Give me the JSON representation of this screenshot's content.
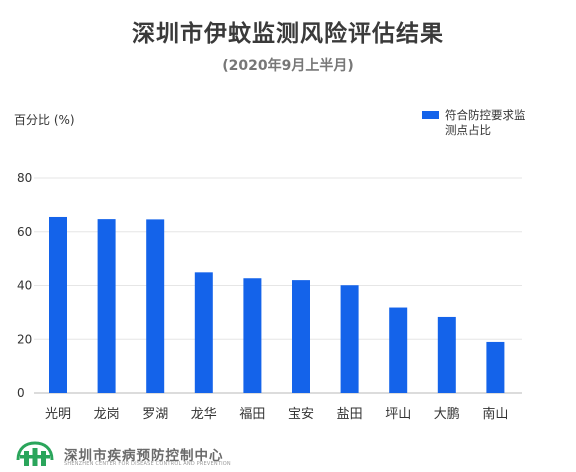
{
  "chart_data": {
    "type": "bar",
    "title": "深圳市伊蚊监测风险评估结果",
    "subtitle": "(2020年9月上半月)",
    "ylabel": "百分比 (%)",
    "xlabel": "",
    "categories": [
      "光明",
      "龙岗",
      "罗湖",
      "龙华",
      "福田",
      "宝安",
      "盐田",
      "坪山",
      "大鹏",
      "南山"
    ],
    "series": [
      {
        "name": "符合防控要求监测点占比",
        "values": [
          65.5,
          64.7,
          64.6,
          44.9,
          42.7,
          42.0,
          40.1,
          31.8,
          28.3,
          19.0
        ],
        "color": "#1463ea"
      }
    ],
    "ylim": [
      0,
      80
    ],
    "yticks": [
      0,
      20,
      40,
      60,
      80
    ],
    "grid": true,
    "legend_position": "top-right"
  },
  "footer": {
    "org_name": "深圳市疾病预防控制中心",
    "org_name_en": "SHENZHEN CENTER FOR DISEASE CONTROL AND PREVENTION",
    "logo_icon": "cdc-logo-icon",
    "logo_color": "#2aa55b"
  }
}
